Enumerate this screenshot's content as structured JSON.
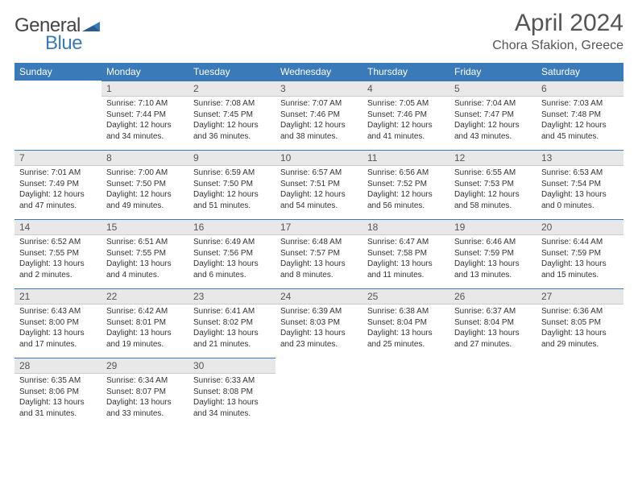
{
  "brand": {
    "part1": "General",
    "part2": "Blue"
  },
  "title": "April 2024",
  "location": "Chora Sfakion, Greece",
  "colors": {
    "accent": "#3a7ab8",
    "header_text": "#ffffff",
    "daynum_bg": "#e8e8e8",
    "text": "#333333",
    "title_text": "#555555",
    "background": "#ffffff"
  },
  "typography": {
    "title_fontsize": 30,
    "location_fontsize": 16,
    "dayheader_fontsize": 12,
    "cell_fontsize": 10
  },
  "day_headers": [
    "Sunday",
    "Monday",
    "Tuesday",
    "Wednesday",
    "Thursday",
    "Friday",
    "Saturday"
  ],
  "layout": {
    "columns": 7,
    "rows": 5,
    "first_weekday_offset": 1
  },
  "days": [
    {
      "n": "1",
      "sunrise": "7:10 AM",
      "sunset": "7:44 PM",
      "daylight": "12 hours and 34 minutes."
    },
    {
      "n": "2",
      "sunrise": "7:08 AM",
      "sunset": "7:45 PM",
      "daylight": "12 hours and 36 minutes."
    },
    {
      "n": "3",
      "sunrise": "7:07 AM",
      "sunset": "7:46 PM",
      "daylight": "12 hours and 38 minutes."
    },
    {
      "n": "4",
      "sunrise": "7:05 AM",
      "sunset": "7:46 PM",
      "daylight": "12 hours and 41 minutes."
    },
    {
      "n": "5",
      "sunrise": "7:04 AM",
      "sunset": "7:47 PM",
      "daylight": "12 hours and 43 minutes."
    },
    {
      "n": "6",
      "sunrise": "7:03 AM",
      "sunset": "7:48 PM",
      "daylight": "12 hours and 45 minutes."
    },
    {
      "n": "7",
      "sunrise": "7:01 AM",
      "sunset": "7:49 PM",
      "daylight": "12 hours and 47 minutes."
    },
    {
      "n": "8",
      "sunrise": "7:00 AM",
      "sunset": "7:50 PM",
      "daylight": "12 hours and 49 minutes."
    },
    {
      "n": "9",
      "sunrise": "6:59 AM",
      "sunset": "7:50 PM",
      "daylight": "12 hours and 51 minutes."
    },
    {
      "n": "10",
      "sunrise": "6:57 AM",
      "sunset": "7:51 PM",
      "daylight": "12 hours and 54 minutes."
    },
    {
      "n": "11",
      "sunrise": "6:56 AM",
      "sunset": "7:52 PM",
      "daylight": "12 hours and 56 minutes."
    },
    {
      "n": "12",
      "sunrise": "6:55 AM",
      "sunset": "7:53 PM",
      "daylight": "12 hours and 58 minutes."
    },
    {
      "n": "13",
      "sunrise": "6:53 AM",
      "sunset": "7:54 PM",
      "daylight": "13 hours and 0 minutes."
    },
    {
      "n": "14",
      "sunrise": "6:52 AM",
      "sunset": "7:55 PM",
      "daylight": "13 hours and 2 minutes."
    },
    {
      "n": "15",
      "sunrise": "6:51 AM",
      "sunset": "7:55 PM",
      "daylight": "13 hours and 4 minutes."
    },
    {
      "n": "16",
      "sunrise": "6:49 AM",
      "sunset": "7:56 PM",
      "daylight": "13 hours and 6 minutes."
    },
    {
      "n": "17",
      "sunrise": "6:48 AM",
      "sunset": "7:57 PM",
      "daylight": "13 hours and 8 minutes."
    },
    {
      "n": "18",
      "sunrise": "6:47 AM",
      "sunset": "7:58 PM",
      "daylight": "13 hours and 11 minutes."
    },
    {
      "n": "19",
      "sunrise": "6:46 AM",
      "sunset": "7:59 PM",
      "daylight": "13 hours and 13 minutes."
    },
    {
      "n": "20",
      "sunrise": "6:44 AM",
      "sunset": "7:59 PM",
      "daylight": "13 hours and 15 minutes."
    },
    {
      "n": "21",
      "sunrise": "6:43 AM",
      "sunset": "8:00 PM",
      "daylight": "13 hours and 17 minutes."
    },
    {
      "n": "22",
      "sunrise": "6:42 AM",
      "sunset": "8:01 PM",
      "daylight": "13 hours and 19 minutes."
    },
    {
      "n": "23",
      "sunrise": "6:41 AM",
      "sunset": "8:02 PM",
      "daylight": "13 hours and 21 minutes."
    },
    {
      "n": "24",
      "sunrise": "6:39 AM",
      "sunset": "8:03 PM",
      "daylight": "13 hours and 23 minutes."
    },
    {
      "n": "25",
      "sunrise": "6:38 AM",
      "sunset": "8:04 PM",
      "daylight": "13 hours and 25 minutes."
    },
    {
      "n": "26",
      "sunrise": "6:37 AM",
      "sunset": "8:04 PM",
      "daylight": "13 hours and 27 minutes."
    },
    {
      "n": "27",
      "sunrise": "6:36 AM",
      "sunset": "8:05 PM",
      "daylight": "13 hours and 29 minutes."
    },
    {
      "n": "28",
      "sunrise": "6:35 AM",
      "sunset": "8:06 PM",
      "daylight": "13 hours and 31 minutes."
    },
    {
      "n": "29",
      "sunrise": "6:34 AM",
      "sunset": "8:07 PM",
      "daylight": "13 hours and 33 minutes."
    },
    {
      "n": "30",
      "sunrise": "6:33 AM",
      "sunset": "8:08 PM",
      "daylight": "13 hours and 34 minutes."
    }
  ],
  "labels": {
    "sunrise": "Sunrise:",
    "sunset": "Sunset:",
    "daylight": "Daylight:"
  }
}
